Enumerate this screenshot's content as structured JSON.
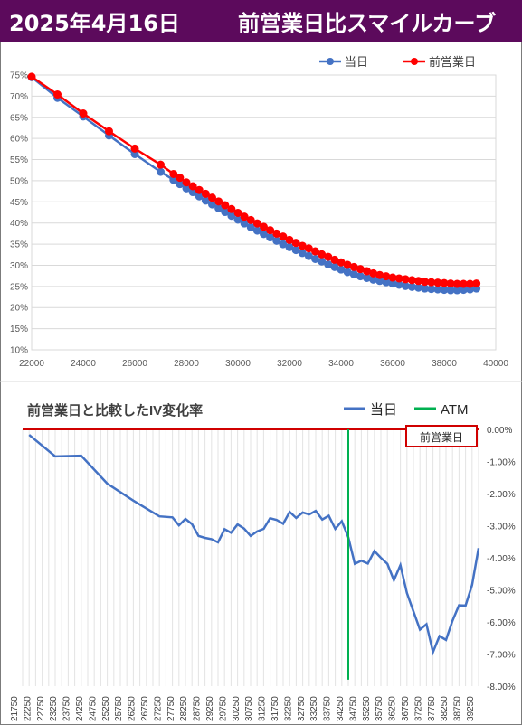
{
  "header": {
    "date": "2025年4月16日",
    "title": "前営業日比スマイルカーブ",
    "bg_color": "#5c0a5c"
  },
  "chart_data": [
    {
      "type": "line",
      "title": "",
      "xlabel": "",
      "ylabel": "",
      "xlim": [
        22000,
        40000
      ],
      "ylim": [
        10,
        75
      ],
      "x_ticks": [
        22000,
        24000,
        26000,
        28000,
        30000,
        32000,
        34000,
        36000,
        38000,
        40000
      ],
      "y_ticks": [
        "10%",
        "15%",
        "20%",
        "25%",
        "30%",
        "35%",
        "40%",
        "45%",
        "50%",
        "55%",
        "60%",
        "65%",
        "70%",
        "75%"
      ],
      "grid": "horizontal",
      "legend_position": "top-right",
      "series": [
        {
          "name": "当日",
          "color": "#4472c4",
          "x": [
            22000,
            23000,
            24000,
            25000,
            26000,
            27000,
            27500,
            27750,
            28000,
            28250,
            28500,
            28750,
            29000,
            29250,
            29500,
            29750,
            30000,
            30250,
            30500,
            30750,
            31000,
            31250,
            31500,
            31750,
            32000,
            32250,
            32500,
            32750,
            33000,
            33250,
            33500,
            33750,
            34000,
            34250,
            34500,
            34750,
            35000,
            35250,
            35500,
            35750,
            36000,
            36250,
            36500,
            36750,
            37000,
            37250,
            37500,
            37750,
            38000,
            38250,
            38500,
            38750,
            39000,
            39250
          ],
          "values": [
            74.5,
            69.6,
            65.2,
            60.7,
            56.3,
            52.1,
            50.2,
            49.2,
            48.2,
            47.3,
            46.3,
            45.3,
            44.4,
            43.5,
            42.6,
            41.7,
            40.8,
            39.9,
            39.0,
            38.2,
            37.4,
            36.6,
            35.8,
            35.0,
            34.3,
            33.6,
            32.9,
            32.2,
            31.5,
            30.9,
            30.2,
            29.6,
            29.0,
            28.4,
            27.9,
            27.4,
            27.0,
            26.6,
            26.3,
            26.0,
            25.7,
            25.4,
            25.1,
            24.9,
            24.7,
            24.5,
            24.4,
            24.3,
            24.2,
            24.1,
            24.1,
            24.2,
            24.3,
            24.5
          ]
        },
        {
          "name": "前営業日",
          "color": "#ff0000",
          "x": [
            22000,
            23000,
            24000,
            25000,
            26000,
            27000,
            27500,
            27750,
            28000,
            28250,
            28500,
            28750,
            29000,
            29250,
            29500,
            29750,
            30000,
            30250,
            30500,
            30750,
            31000,
            31250,
            31500,
            31750,
            32000,
            32250,
            32500,
            32750,
            33000,
            33250,
            33500,
            33750,
            34000,
            34250,
            34500,
            34750,
            35000,
            35250,
            35500,
            35750,
            36000,
            36250,
            36500,
            36750,
            37000,
            37250,
            37500,
            37750,
            38000,
            38250,
            38500,
            38750,
            39000,
            39250
          ],
          "values": [
            74.6,
            70.4,
            65.9,
            61.7,
            57.6,
            53.8,
            51.6,
            50.7,
            49.6,
            48.7,
            47.8,
            46.9,
            46.0,
            45.1,
            44.2,
            43.3,
            42.4,
            41.5,
            40.7,
            39.9,
            39.1,
            38.3,
            37.5,
            36.8,
            36.0,
            35.3,
            34.6,
            34.0,
            33.3,
            32.6,
            32.0,
            31.3,
            30.7,
            30.1,
            29.6,
            29.1,
            28.6,
            28.1,
            27.7,
            27.4,
            27.1,
            26.9,
            26.7,
            26.5,
            26.3,
            26.1,
            26.0,
            25.9,
            25.8,
            25.7,
            25.6,
            25.6,
            25.6,
            25.7
          ]
        }
      ]
    },
    {
      "type": "line",
      "title": "前営業日と比較したIV変化率",
      "xlabel": "",
      "ylabel": "",
      "ylim": [
        -8,
        0
      ],
      "y_ticks": [
        "0.00%",
        "-1.00%",
        "-2.00%",
        "-3.00%",
        "-4.00%",
        "-5.00%",
        "-6.00%",
        "-7.00%",
        "-8.00%"
      ],
      "categories": [
        "21750",
        "22000",
        "22250",
        "22500",
        "22750",
        "23000",
        "23250",
        "23500",
        "23750",
        "24000",
        "24250",
        "24500",
        "24750",
        "25000",
        "25250",
        "25500",
        "25750",
        "26000",
        "26250",
        "26500",
        "26750",
        "27000",
        "27250",
        "27500",
        "27750",
        "28000",
        "28250",
        "28500",
        "28750",
        "29000",
        "29250",
        "29500",
        "29750",
        "30000",
        "30250",
        "30500",
        "30750",
        "31000",
        "31250",
        "31500",
        "31750",
        "32000",
        "32250",
        "32500",
        "32750",
        "33000",
        "33250",
        "33500",
        "33750",
        "34000",
        "34250",
        "34500",
        "34750",
        "35000",
        "35250",
        "35500",
        "35750",
        "36000",
        "36250",
        "36500",
        "36750",
        "37000",
        "37250",
        "37500",
        "37750",
        "38000",
        "38250",
        "38500",
        "38750",
        "39000",
        "39250"
      ],
      "category_labels": [
        "21750",
        "22250",
        "22750",
        "23250",
        "23750",
        "24250",
        "24750",
        "25250",
        "25750",
        "26250",
        "26750",
        "27250",
        "27750",
        "28250",
        "28750",
        "29250",
        "29750",
        "30250",
        "30750",
        "31250",
        "31750",
        "32250",
        "32750",
        "33250",
        "33750",
        "34250",
        "34750",
        "35250",
        "35750",
        "36250",
        "36750",
        "37250",
        "37750",
        "38250",
        "38750",
        "39250"
      ],
      "grid": "vertical",
      "legend_position": "top-right",
      "reference_line_label": "前営業日",
      "reference_line_color": "#d00000",
      "atm_category": "34250",
      "series": [
        {
          "name": "当日",
          "color": "#4472c4",
          "x": [
            "22000",
            "23000",
            "24000",
            "25000",
            "26000",
            "27000",
            "27500",
            "27750",
            "28000",
            "28250",
            "28500",
            "28750",
            "29000",
            "29250",
            "29500",
            "29750",
            "30000",
            "30250",
            "30500",
            "30750",
            "31000",
            "31250",
            "31500",
            "31750",
            "32000",
            "32250",
            "32500",
            "32750",
            "33000",
            "33250",
            "33500",
            "33750",
            "34000",
            "34250",
            "34500",
            "34750",
            "35000",
            "35250",
            "35500",
            "35750",
            "36000",
            "36250",
            "36500",
            "36750",
            "37000",
            "37250",
            "37500",
            "37750",
            "38000",
            "38250",
            "38500",
            "38750",
            "39000",
            "39250"
          ],
          "values": [
            -0.17,
            -0.84,
            -0.82,
            -1.69,
            -2.22,
            -2.71,
            -2.74,
            -2.99,
            -2.79,
            -2.95,
            -3.32,
            -3.38,
            -3.42,
            -3.52,
            -3.11,
            -3.22,
            -2.96,
            -3.09,
            -3.32,
            -3.18,
            -3.1,
            -2.77,
            -2.82,
            -2.94,
            -2.57,
            -2.76,
            -2.59,
            -2.65,
            -2.54,
            -2.81,
            -2.69,
            -3.1,
            -2.86,
            -3.36,
            -4.19,
            -4.09,
            -4.18,
            -3.79,
            -4.0,
            -4.19,
            -4.7,
            -4.23,
            -5.1,
            -5.67,
            -6.24,
            -6.07,
            -6.94,
            -6.44,
            -6.56,
            -5.96,
            -5.48,
            -5.49,
            -4.85,
            -3.7
          ]
        },
        {
          "name": "ATM",
          "color": "#00b050",
          "x": [
            "34250",
            "34250"
          ],
          "values": [
            0.0,
            -7.8
          ]
        }
      ]
    }
  ]
}
